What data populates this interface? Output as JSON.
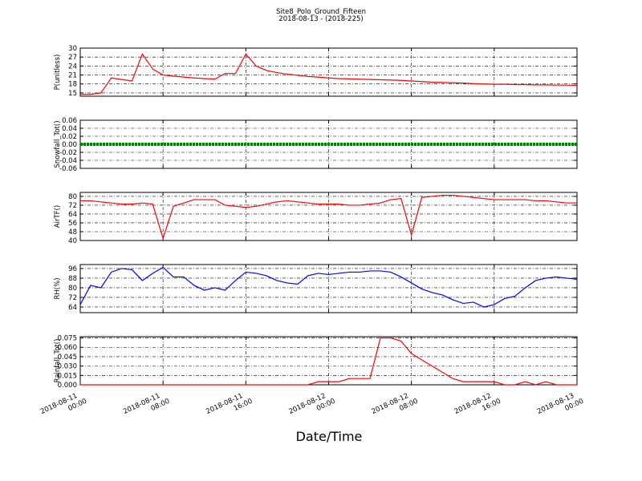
{
  "title": "Site8_Polo_Ground_Fifteen",
  "subtitle": "2018-08-13 - (2018-225)",
  "xlabel": "Date/Time",
  "x": [
    "2018-08-11 00:00",
    "2018-08-11 01:00",
    "2018-08-11 02:00",
    "2018-08-11 03:00",
    "2018-08-11 04:00",
    "2018-08-11 05:00",
    "2018-08-11 06:00",
    "2018-08-11 07:00",
    "2018-08-11 08:00",
    "2018-08-11 09:00",
    "2018-08-11 10:00",
    "2018-08-11 11:00",
    "2018-08-11 12:00",
    "2018-08-11 13:00",
    "2018-08-11 14:00",
    "2018-08-11 15:00",
    "2018-08-11 16:00",
    "2018-08-11 17:00",
    "2018-08-11 18:00",
    "2018-08-11 19:00",
    "2018-08-11 20:00",
    "2018-08-11 21:00",
    "2018-08-11 22:00",
    "2018-08-11 23:00",
    "2018-08-12 00:00",
    "2018-08-12 01:00",
    "2018-08-12 02:00",
    "2018-08-12 03:00",
    "2018-08-12 04:00",
    "2018-08-12 05:00",
    "2018-08-12 06:00",
    "2018-08-12 07:00",
    "2018-08-12 08:00",
    "2018-08-12 09:00",
    "2018-08-12 10:00",
    "2018-08-12 11:00",
    "2018-08-12 12:00",
    "2018-08-12 13:00",
    "2018-08-12 14:00",
    "2018-08-12 15:00",
    "2018-08-12 16:00",
    "2018-08-12 17:00",
    "2018-08-12 18:00",
    "2018-08-12 19:00",
    "2018-08-12 20:00",
    "2018-08-12 21:00",
    "2018-08-12 22:00",
    "2018-08-12 23:00",
    "2018-08-13 00:00"
  ],
  "xlim": [
    "2018-08-11 00:00",
    "2018-08-13 00:00"
  ],
  "xticks": [
    "2018-08-11 00:00",
    "2018-08-11 08:00",
    "2018-08-11 16:00",
    "2018-08-12 00:00",
    "2018-08-12 08:00",
    "2018-08-12 16:00",
    "2018-08-13 00:00"
  ],
  "chart_data": [
    {
      "type": "line",
      "ylabel": "P(unitless)",
      "ylim": [
        13.9,
        30
      ],
      "yticks": [
        15,
        18,
        21,
        24,
        27,
        30
      ],
      "grid": true,
      "series": [
        {
          "color": "#ff0000",
          "values": [
            14.5,
            14.5,
            15,
            20,
            19.5,
            19,
            28,
            23,
            21,
            20.6,
            20.3,
            20,
            19.8,
            19.6,
            21.5,
            21.5,
            28,
            24,
            22.5,
            21.8,
            21.3,
            20.9,
            20.5,
            20.3,
            20,
            19.8,
            19.7,
            19.6,
            19.5,
            19.4,
            19.3,
            19.2,
            19,
            18.8,
            18.6,
            18.5,
            18.4,
            18.3,
            18.1,
            18,
            17.9,
            17.9,
            17.8,
            17.8,
            17.7,
            17.7,
            17.6,
            17.6,
            17.5
          ]
        }
      ]
    },
    {
      "type": "line",
      "ylabel": "Snowfall_Tot()",
      "ylim": [
        -0.06,
        0.06
      ],
      "yticks": [
        -0.06,
        -0.04,
        -0.02,
        {
          "value": 0,
          "label": "0.00"
        },
        0.02,
        0.04,
        0.06
      ],
      "grid": true,
      "series": [
        {
          "color": "#008000",
          "values": [
            0,
            0,
            0,
            0,
            0,
            0,
            0,
            0,
            0,
            0,
            0,
            0,
            0,
            0,
            0,
            0,
            0,
            0,
            0,
            0,
            0,
            0,
            0,
            0,
            0,
            0,
            0,
            0,
            0,
            0,
            0,
            0,
            0,
            0,
            0,
            0,
            0,
            0,
            0,
            0,
            0,
            0,
            0,
            0,
            0,
            0,
            0,
            0,
            0
          ]
        }
      ]
    },
    {
      "type": "line",
      "ylabel": "AirTF()",
      "ylim": [
        40,
        83.6
      ],
      "yticks": [
        40,
        48,
        56,
        64,
        72,
        80
      ],
      "grid": true,
      "series": [
        {
          "color": "#ff0000",
          "values": [
            76,
            76,
            75,
            74,
            73,
            73,
            74,
            73,
            42,
            71,
            74,
            77,
            77,
            77,
            72,
            71,
            70,
            71,
            73,
            75,
            76,
            75,
            74,
            73,
            73,
            73,
            72,
            72,
            73,
            74,
            77,
            78,
            45,
            79,
            80,
            81,
            81,
            80,
            79,
            78,
            77,
            77,
            77,
            77,
            76,
            76,
            75,
            74,
            74
          ]
        }
      ]
    },
    {
      "type": "line",
      "ylabel": "RH(%)",
      "ylim": [
        59.3,
        99.3
      ],
      "yticks": [
        64,
        72,
        80,
        88,
        96
      ],
      "grid": true,
      "series": [
        {
          "color": "#0000ff",
          "values": [
            66,
            82,
            80,
            93,
            96,
            95,
            86,
            92,
            97,
            89,
            89,
            82,
            78,
            80,
            78,
            86,
            93,
            92,
            90,
            86,
            84,
            83,
            90,
            92,
            91,
            92,
            93,
            93,
            94,
            94,
            93,
            89,
            84,
            79,
            76,
            74,
            70,
            67,
            68,
            64,
            66,
            71,
            73,
            80,
            86,
            88,
            89,
            88,
            87
          ]
        }
      ]
    },
    {
      "type": "line",
      "ylabel": "Rainfall_Tot()",
      "ylim": [
        0,
        0.077
      ],
      "yticks": [
        {
          "value": 0,
          "label": "0.000"
        },
        0.015,
        {
          "value": 0.03,
          "label": "0.030"
        },
        0.045,
        {
          "value": 0.06,
          "label": "0.060"
        },
        0.075
      ],
      "grid": true,
      "series": [
        {
          "color": "#ff0000",
          "values": [
            0,
            0,
            0,
            0,
            0,
            0,
            0,
            0,
            0,
            0,
            0,
            0,
            0,
            0,
            0,
            0,
            0,
            0,
            0,
            0,
            0,
            0,
            0,
            0.005,
            0.005,
            0.005,
            0.01,
            0.01,
            0.01,
            0.075,
            0.075,
            0.07,
            0.05,
            0.04,
            0.03,
            0.02,
            0.01,
            0.005,
            0.005,
            0.005,
            0.005,
            0,
            0,
            0.005,
            0,
            0.005,
            0,
            0,
            0
          ]
        }
      ]
    }
  ]
}
